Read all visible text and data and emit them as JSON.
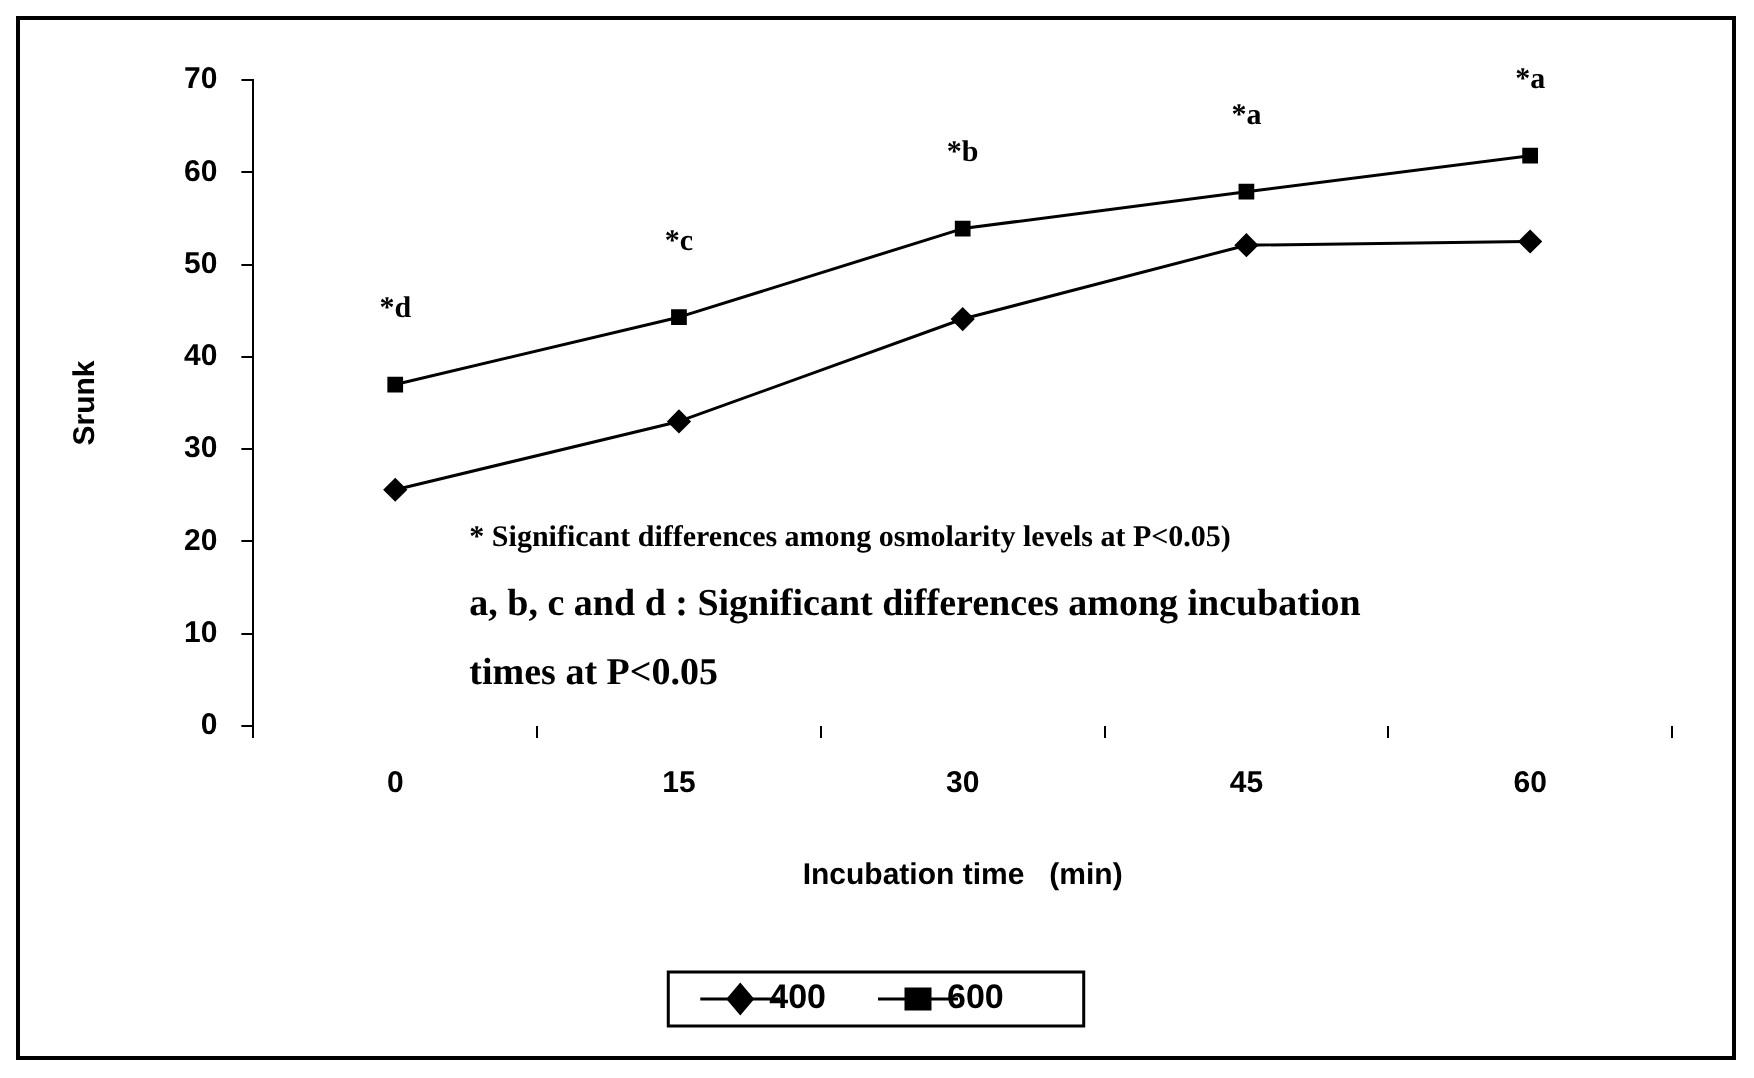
{
  "chart_data": {
    "type": "line",
    "xlabel": "Incubation time   (min)",
    "ylabel": "Srunk",
    "categories": [
      "0",
      "15",
      "30",
      "45",
      "60"
    ],
    "series": [
      {
        "name": "400",
        "color": "#000000",
        "marker": "diamond",
        "values": [
          25.6,
          33,
          44.1,
          52.1,
          52.5
        ]
      },
      {
        "name": "600",
        "color": "#000000",
        "marker": "square",
        "values": [
          37,
          44.3,
          53.9,
          57.9,
          61.8
        ]
      }
    ],
    "ylim": [
      0,
      70
    ],
    "yticks": [
      0,
      10,
      20,
      30,
      40,
      50,
      60,
      70
    ],
    "grid": false,
    "legend": "bottom",
    "line_style": "solid",
    "annotations": [
      {
        "text": "*d",
        "x": "0",
        "y": 37
      },
      {
        "text": "*c",
        "x": "15",
        "y": 44.3
      },
      {
        "text": "*b",
        "x": "30",
        "y": 53.9
      },
      {
        "text": "*a",
        "x": "45",
        "y": 57.9
      },
      {
        "text": "*a",
        "x": "60",
        "y": 61.8
      },
      "* Significant differences among osmolarity levels at P<0.05)",
      "a, b, c and d : Significant differences among incubation times at P<0.05"
    ]
  }
}
